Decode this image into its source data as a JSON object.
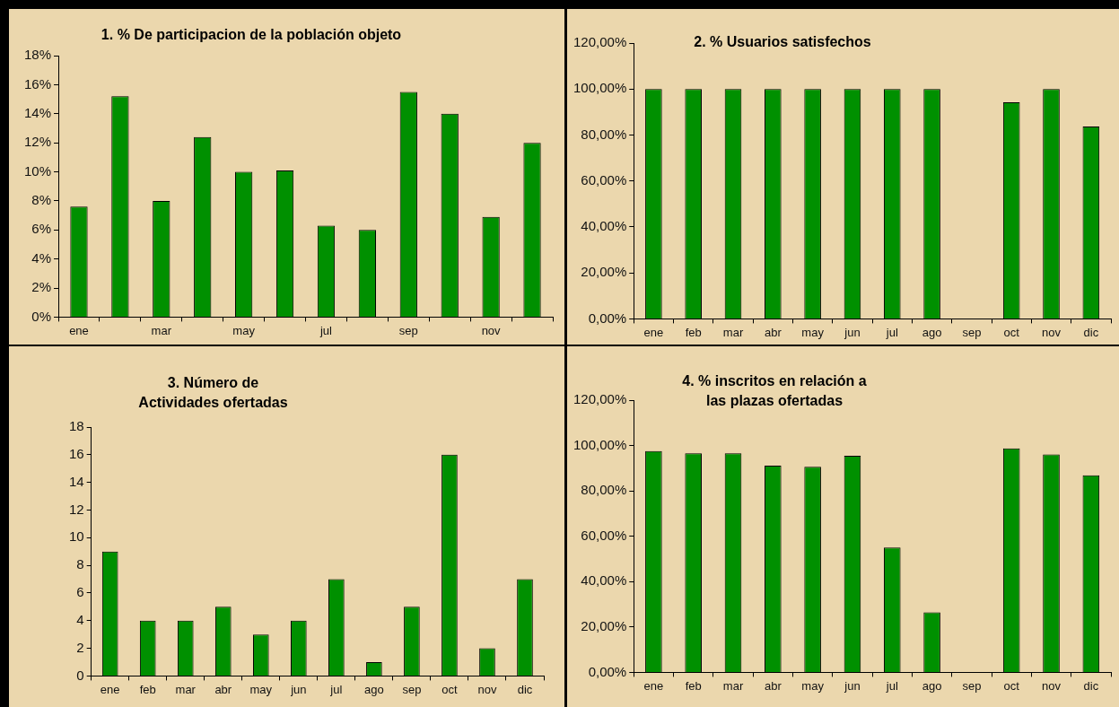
{
  "chart_data": [
    {
      "type": "bar",
      "title": "1. % De participacion de la población objeto",
      "categories": [
        "ene",
        null,
        "mar",
        null,
        "may",
        null,
        "jul",
        null,
        "sep",
        null,
        "nov",
        null
      ],
      "series": [
        {
          "color": "#009000",
          "values": [
            7.6,
            15.2,
            8.0,
            12.4,
            10.0,
            10.1,
            6.3,
            6.0,
            15.5,
            14.0,
            6.9,
            12.0
          ]
        }
      ],
      "ylim": [
        0,
        18
      ],
      "yticks": [
        {
          "value": 0,
          "label": "0%"
        },
        {
          "value": 2,
          "label": "2%"
        },
        {
          "value": 4,
          "label": "4%"
        },
        {
          "value": 6,
          "label": "6%"
        },
        {
          "value": 8,
          "label": "8%"
        },
        {
          "value": 10,
          "label": "10%"
        },
        {
          "value": 12,
          "label": "12%"
        },
        {
          "value": 14,
          "label": "14%"
        },
        {
          "value": 16,
          "label": "16%"
        },
        {
          "value": 18,
          "label": "18%"
        }
      ],
      "grid": false,
      "legend": false
    },
    {
      "type": "bar",
      "title": "2. % Usuarios satisfechos",
      "categories": [
        "ene",
        "feb",
        "mar",
        "abr",
        "may",
        "jun",
        "jul",
        "ago",
        "sep",
        "oct",
        "nov",
        "dic"
      ],
      "series": [
        {
          "color": "#009000",
          "values": [
            100,
            100,
            100,
            100,
            100,
            100,
            100,
            100,
            null,
            94.2,
            100,
            83.7
          ]
        }
      ],
      "ylim": [
        0,
        120
      ],
      "yticks": [
        {
          "value": 0,
          "label": "0,00%"
        },
        {
          "value": 20,
          "label": "20,00%"
        },
        {
          "value": 40,
          "label": "40,00%"
        },
        {
          "value": 60,
          "label": "60,00%"
        },
        {
          "value": 80,
          "label": "80,00%"
        },
        {
          "value": 100,
          "label": "100,00%"
        },
        {
          "value": 120,
          "label": "120,00%"
        }
      ],
      "grid": false,
      "legend": false
    },
    {
      "type": "bar",
      "title": "3. Número de Actividades ofertadas",
      "categories": [
        "ene",
        "feb",
        "mar",
        "abr",
        "may",
        "jun",
        "jul",
        "ago",
        "sep",
        "oct",
        "nov",
        "dic"
      ],
      "series": [
        {
          "color": "#009000",
          "values": [
            9,
            4,
            4,
            5,
            3,
            4,
            7,
            1,
            5,
            16,
            2,
            7
          ]
        }
      ],
      "ylim": [
        0,
        18
      ],
      "yticks": [
        0,
        2,
        4,
        6,
        8,
        10,
        12,
        14,
        16,
        18
      ],
      "grid": false,
      "legend": false
    },
    {
      "type": "bar",
      "title": "4. % inscritos en relación a las plazas ofertadas",
      "categories": [
        "ene",
        "feb",
        "mar",
        "abr",
        "may",
        "jun",
        "jul",
        "ago",
        "sep",
        "oct",
        "nov",
        "dic"
      ],
      "series": [
        {
          "color": "#009000",
          "values": [
            97.6,
            96.6,
            96.6,
            91.1,
            90.6,
            95.5,
            55.0,
            26.5,
            null,
            98.7,
            96.1,
            86.9
          ]
        }
      ],
      "ylim": [
        0,
        120
      ],
      "yticks": [
        {
          "value": 0,
          "label": "0,00%"
        },
        {
          "value": 20,
          "label": "20,00%"
        },
        {
          "value": 40,
          "label": "40,00%"
        },
        {
          "value": 60,
          "label": "60,00%"
        },
        {
          "value": 80,
          "label": "80,00%"
        },
        {
          "value": 100,
          "label": "100,00%"
        },
        {
          "value": 120,
          "label": "120,00%"
        }
      ],
      "grid": false,
      "legend": false
    }
  ]
}
